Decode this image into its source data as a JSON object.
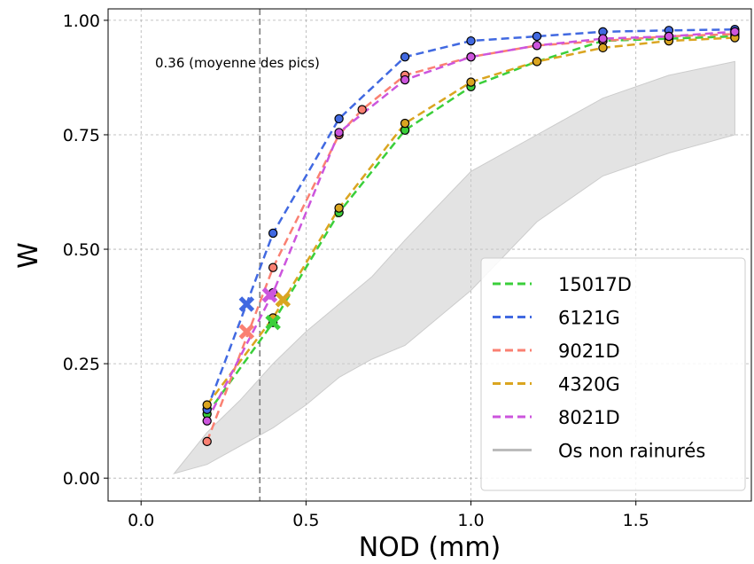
{
  "chart_data": {
    "type": "line",
    "xlabel": "NOD (mm)",
    "ylabel": "W",
    "xlim": [
      -0.1,
      1.85
    ],
    "ylim": [
      -0.05,
      1.025
    ],
    "x_ticks": [
      0.0,
      0.5,
      1.0,
      1.5
    ],
    "x_tick_labels": [
      "0.0",
      "0.5",
      "1.0",
      "1.5"
    ],
    "y_ticks": [
      0.0,
      0.25,
      0.5,
      0.75,
      1.0
    ],
    "y_tick_labels": [
      "0.00",
      "0.25",
      "0.50",
      "0.75",
      "1.00"
    ],
    "grid": true,
    "legend_position": "lower-right",
    "reference_line": {
      "x": 0.36,
      "label": "0.36 (moyenne des pics)",
      "color": "#7f7f7f"
    },
    "series": [
      {
        "name": "15017D",
        "color": "#3bcf3b",
        "x": [
          0.2,
          0.4,
          0.6,
          0.8,
          1.0,
          1.2,
          1.4,
          1.6,
          1.8
        ],
        "y": [
          0.14,
          0.34,
          0.58,
          0.76,
          0.855,
          0.91,
          0.955,
          0.96,
          0.965
        ],
        "peak": {
          "x": 0.4,
          "y": 0.34
        }
      },
      {
        "name": "6121G",
        "color": "#4169e1",
        "x": [
          0.2,
          0.4,
          0.6,
          0.8,
          1.0,
          1.2,
          1.4,
          1.6,
          1.8
        ],
        "y": [
          0.15,
          0.535,
          0.785,
          0.92,
          0.955,
          0.965,
          0.975,
          0.978,
          0.98
        ],
        "peak": {
          "x": 0.32,
          "y": 0.38
        }
      },
      {
        "name": "9021D",
        "color": "#fa8072",
        "x": [
          0.2,
          0.4,
          0.6,
          0.67,
          0.8,
          1.0,
          1.2,
          1.4,
          1.6,
          1.8
        ],
        "y": [
          0.08,
          0.46,
          0.75,
          0.805,
          0.88,
          0.92,
          0.945,
          0.955,
          0.965,
          0.97
        ],
        "peak": {
          "x": 0.32,
          "y": 0.32
        }
      },
      {
        "name": "4320G",
        "color": "#daa520",
        "x": [
          0.2,
          0.4,
          0.6,
          0.8,
          1.0,
          1.2,
          1.4,
          1.6,
          1.8
        ],
        "y": [
          0.16,
          0.35,
          0.59,
          0.775,
          0.865,
          0.91,
          0.94,
          0.955,
          0.962
        ],
        "peak": {
          "x": 0.43,
          "y": 0.39
        }
      },
      {
        "name": "8021D",
        "color": "#cc55dd",
        "x": [
          0.2,
          0.4,
          0.6,
          0.8,
          1.0,
          1.2,
          1.4,
          1.6,
          1.8
        ],
        "y": [
          0.125,
          0.405,
          0.755,
          0.87,
          0.92,
          0.945,
          0.96,
          0.965,
          0.975
        ],
        "peak": {
          "x": 0.39,
          "y": 0.4
        }
      }
    ],
    "band": {
      "name": "Os non rainurés",
      "color": "#cccccc",
      "x": [
        0.1,
        0.2,
        0.3,
        0.4,
        0.5,
        0.6,
        0.7,
        0.8,
        1.0,
        1.2,
        1.4,
        1.6,
        1.8
      ],
      "lower": [
        0.01,
        0.03,
        0.07,
        0.11,
        0.16,
        0.22,
        0.26,
        0.29,
        0.41,
        0.56,
        0.66,
        0.71,
        0.75
      ],
      "upper": [
        0.01,
        0.1,
        0.17,
        0.25,
        0.32,
        0.38,
        0.44,
        0.52,
        0.67,
        0.75,
        0.83,
        0.88,
        0.91
      ]
    }
  }
}
